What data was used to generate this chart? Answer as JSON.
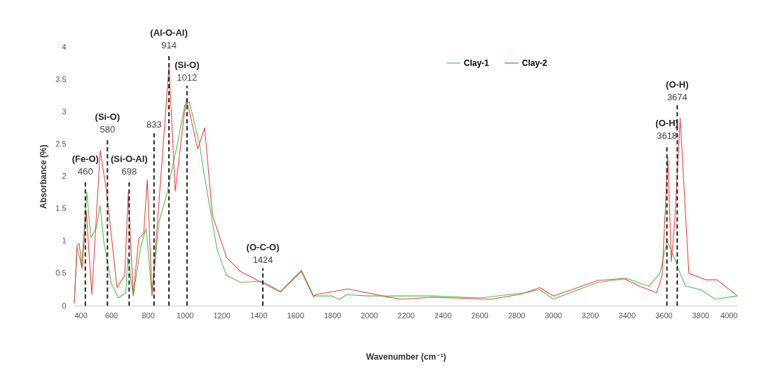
{
  "chart_data": {
    "type": "line",
    "xlabel": "Wavenumber (cm⁻¹)",
    "ylabel": "Absorbance (%)",
    "xlim": [
      400,
      4000
    ],
    "xticks": [
      400,
      600,
      800,
      1000,
      1200,
      1400,
      1600,
      1800,
      2000,
      2200,
      2400,
      2600,
      2800,
      3000,
      3200,
      3400,
      3600,
      3800,
      4000
    ],
    "ylim": [
      0,
      4
    ],
    "yticks": [
      0,
      0.5,
      1,
      1.5,
      2,
      2.5,
      3,
      3.5,
      4
    ],
    "grid": false,
    "legend": "top",
    "line_style": "solid",
    "series": [
      {
        "name": "Clay-1",
        "color": "#4fbf4f",
        "x": [
          400,
          415,
          440,
          468,
          490,
          520,
          540,
          560,
          600,
          640,
          680,
          690,
          720,
          760,
          790,
          822,
          860,
          900,
          960,
          1000,
          1025,
          1080,
          1100,
          1176,
          1226,
          1302,
          1420,
          1520,
          1633,
          1700,
          1800,
          1840,
          1880,
          2000,
          2350,
          2600,
          2850,
          2927,
          3000,
          3243,
          3400,
          3520,
          3580,
          3618,
          3650,
          3690,
          3720,
          3800,
          3880,
          4000
        ],
        "values": [
          0.05,
          0.9,
          0.6,
          1.75,
          1.05,
          1.2,
          1.55,
          1.0,
          0.35,
          0.12,
          0.2,
          0.75,
          0.15,
          0.9,
          1.2,
          0.15,
          1.3,
          1.7,
          2.5,
          3.1,
          3.15,
          2.5,
          2.12,
          0.86,
          0.47,
          0.36,
          0.38,
          0.22,
          0.55,
          0.15,
          0.15,
          0.1,
          0.17,
          0.15,
          0.15,
          0.12,
          0.2,
          0.25,
          0.1,
          0.36,
          0.42,
          0.3,
          0.5,
          1.0,
          0.8,
          0.5,
          0.3,
          0.25,
          0.1,
          0.15
        ]
      },
      {
        "name": "Clay-2",
        "color": "#e8473f",
        "x": [
          400,
          415,
          427,
          442,
          465,
          495,
          541,
          575,
          632,
          674,
          693,
          720,
          750,
          777,
          796,
          822,
          883,
          914,
          948,
          997,
          1010,
          1070,
          1108,
          1150,
          1226,
          1302,
          1416,
          1519,
          1633,
          1698,
          1709,
          1888,
          2089,
          2177,
          2344,
          2660,
          2812,
          2850,
          2927,
          3003,
          3243,
          3383,
          3471,
          3562,
          3592,
          3623,
          3642,
          3661,
          3690,
          3737,
          3828,
          3890,
          4000
        ],
        "values": [
          0.03,
          0.93,
          0.96,
          0.57,
          1.47,
          0.17,
          2.4,
          1.77,
          0.28,
          0.47,
          1.75,
          0.17,
          1.04,
          1.12,
          1.95,
          0.17,
          2.48,
          3.7,
          1.77,
          2.96,
          3.2,
          2.42,
          2.75,
          1.4,
          0.75,
          0.53,
          0.36,
          0.21,
          0.53,
          0.14,
          0.17,
          0.26,
          0.14,
          0.1,
          0.13,
          0.1,
          0.17,
          0.2,
          0.28,
          0.15,
          0.39,
          0.42,
          0.3,
          0.2,
          0.47,
          2.3,
          0.68,
          1.33,
          2.9,
          0.5,
          0.4,
          0.4,
          0.15
        ]
      }
    ],
    "ref_lines": [
      {
        "axis": "x",
        "value": 460,
        "label": "(Fe-O)\n460",
        "color": "#222222",
        "line_style": "dashed"
      },
      {
        "axis": "x",
        "value": 580,
        "label": "(Si-O)\n580",
        "color": "#222222",
        "line_style": "dashed"
      },
      {
        "axis": "x",
        "value": 698,
        "label": "(Si-O-Al)\n698",
        "color": "#222222",
        "line_style": "dashed"
      },
      {
        "axis": "x",
        "value": 833,
        "label": "833",
        "color": "#222222",
        "line_style": "dashed"
      },
      {
        "axis": "x",
        "value": 914,
        "label": "(Al-O-Al)\n914",
        "color": "#222222",
        "line_style": "dashed"
      },
      {
        "axis": "x",
        "value": 1012,
        "label": "(Si-O)\n1012",
        "color": "#222222",
        "line_style": "dashed"
      },
      {
        "axis": "x",
        "value": 1424,
        "label": "(O-C-O)\n1424",
        "color": "#222222",
        "line_style": "dashed"
      },
      {
        "axis": "x",
        "value": 3618,
        "label": "(O-H)\n3618",
        "color": "#222222",
        "line_style": "dashed"
      },
      {
        "axis": "x",
        "value": 3674,
        "label": "(O-H)\n3674",
        "color": "#222222",
        "line_style": "dashed"
      }
    ]
  }
}
